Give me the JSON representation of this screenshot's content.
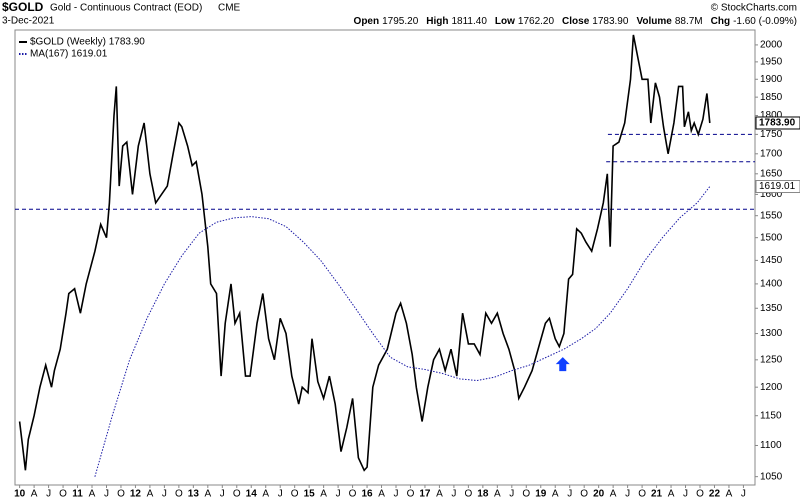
{
  "chart_data": {
    "type": "line",
    "symbol": "$GOLD",
    "name": "Gold - Continuous Contract (EOD)",
    "exchange": "CME",
    "date": "3-Dec-2021",
    "quote": [
      {
        "label": "Open",
        "value": "1795.20"
      },
      {
        "label": "High",
        "value": "1811.40"
      },
      {
        "label": "Low",
        "value": "1762.20"
      },
      {
        "label": "Close",
        "value": "1783.90"
      },
      {
        "label": "Volume",
        "value": "88.7M"
      },
      {
        "label": "Chg",
        "value": "-1.60 (-0.09%)"
      }
    ],
    "credit": "© StockCharts.com",
    "log_scale": true,
    "xlim": [
      2009.92,
      2022.7
    ],
    "ylim": [
      1037,
      2045
    ],
    "yticks": [
      1050,
      1100,
      1150,
      1200,
      1250,
      1300,
      1350,
      1400,
      1450,
      1500,
      1550,
      1600,
      1650,
      1700,
      1750,
      1800,
      1850,
      1900,
      1950,
      2000
    ],
    "xticks": [
      {
        "value": 2010,
        "label": "10"
      },
      {
        "value": 2010.25,
        "label": "A"
      },
      {
        "value": 2010.5,
        "label": "J"
      },
      {
        "value": 2010.75,
        "label": "O"
      },
      {
        "value": 2011,
        "label": "11"
      },
      {
        "value": 2011.25,
        "label": "A"
      },
      {
        "value": 2011.5,
        "label": "J"
      },
      {
        "value": 2011.75,
        "label": "O"
      },
      {
        "value": 2012,
        "label": "12"
      },
      {
        "value": 2012.25,
        "label": "A"
      },
      {
        "value": 2012.5,
        "label": "J"
      },
      {
        "value": 2012.75,
        "label": "O"
      },
      {
        "value": 2013,
        "label": "13"
      },
      {
        "value": 2013.25,
        "label": "A"
      },
      {
        "value": 2013.5,
        "label": "J"
      },
      {
        "value": 2013.75,
        "label": "O"
      },
      {
        "value": 2014,
        "label": "14"
      },
      {
        "value": 2014.25,
        "label": "A"
      },
      {
        "value": 2014.5,
        "label": "J"
      },
      {
        "value": 2014.75,
        "label": "O"
      },
      {
        "value": 2015,
        "label": "15"
      },
      {
        "value": 2015.25,
        "label": "A"
      },
      {
        "value": 2015.5,
        "label": "J"
      },
      {
        "value": 2015.75,
        "label": "O"
      },
      {
        "value": 2016,
        "label": "16"
      },
      {
        "value": 2016.25,
        "label": "A"
      },
      {
        "value": 2016.5,
        "label": "J"
      },
      {
        "value": 2016.75,
        "label": "O"
      },
      {
        "value": 2017,
        "label": "17"
      },
      {
        "value": 2017.25,
        "label": "A"
      },
      {
        "value": 2017.5,
        "label": "J"
      },
      {
        "value": 2017.75,
        "label": "O"
      },
      {
        "value": 2018,
        "label": "18"
      },
      {
        "value": 2018.25,
        "label": "A"
      },
      {
        "value": 2018.5,
        "label": "J"
      },
      {
        "value": 2018.75,
        "label": "O"
      },
      {
        "value": 2019,
        "label": "19"
      },
      {
        "value": 2019.25,
        "label": "A"
      },
      {
        "value": 2019.5,
        "label": "J"
      },
      {
        "value": 2019.75,
        "label": "O"
      },
      {
        "value": 2020,
        "label": "20"
      },
      {
        "value": 2020.25,
        "label": "A"
      },
      {
        "value": 2020.5,
        "label": "J"
      },
      {
        "value": 2020.75,
        "label": "O"
      },
      {
        "value": 2021,
        "label": "21"
      },
      {
        "value": 2021.25,
        "label": "A"
      },
      {
        "value": 2021.5,
        "label": "J"
      },
      {
        "value": 2021.75,
        "label": "O"
      },
      {
        "value": 2022,
        "label": "22"
      },
      {
        "value": 2022.25,
        "label": "A"
      },
      {
        "value": 2022.5,
        "label": "J"
      }
    ],
    "series": [
      {
        "name": "$GOLD (Weekly) 1783.90",
        "last_label": "1783.90",
        "color": "#000000",
        "style": "solid",
        "x": [
          2010.0,
          2010.05,
          2010.1,
          2010.15,
          2010.25,
          2010.35,
          2010.45,
          2010.55,
          2010.6,
          2010.7,
          2010.8,
          2010.85,
          2010.95,
          2011.05,
          2011.15,
          2011.3,
          2011.4,
          2011.5,
          2011.55,
          2011.63,
          2011.67,
          2011.72,
          2011.78,
          2011.85,
          2011.95,
          2012.05,
          2012.15,
          2012.25,
          2012.35,
          2012.45,
          2012.55,
          2012.65,
          2012.75,
          2012.8,
          2012.9,
          2012.98,
          2013.05,
          2013.15,
          2013.25,
          2013.3,
          2013.4,
          2013.48,
          2013.55,
          2013.65,
          2013.72,
          2013.8,
          2013.9,
          2013.98,
          2014.1,
          2014.2,
          2014.3,
          2014.4,
          2014.5,
          2014.6,
          2014.7,
          2014.82,
          2014.88,
          2014.98,
          2015.05,
          2015.15,
          2015.25,
          2015.35,
          2015.45,
          2015.55,
          2015.65,
          2015.75,
          2015.85,
          2015.95,
          2016.0,
          2016.1,
          2016.2,
          2016.35,
          2016.5,
          2016.58,
          2016.68,
          2016.78,
          2016.85,
          2016.95,
          2017.05,
          2017.15,
          2017.25,
          2017.35,
          2017.45,
          2017.55,
          2017.65,
          2017.75,
          2017.85,
          2017.95,
          2018.05,
          2018.15,
          2018.25,
          2018.35,
          2018.45,
          2018.55,
          2018.62,
          2018.72,
          2018.85,
          2018.98,
          2019.08,
          2019.15,
          2019.25,
          2019.32,
          2019.4,
          2019.48,
          2019.55,
          2019.62,
          2019.7,
          2019.78,
          2019.88,
          2019.98,
          2020.08,
          2020.15,
          2020.2,
          2020.25,
          2020.35,
          2020.45,
          2020.55,
          2020.6,
          2020.68,
          2020.75,
          2020.85,
          2020.9,
          2020.98,
          2021.05,
          2021.12,
          2021.2,
          2021.3,
          2021.38,
          2021.45,
          2021.48,
          2021.55,
          2021.6,
          2021.65,
          2021.72,
          2021.8,
          2021.87,
          2021.92
        ],
        "values": [
          1140,
          1100,
          1060,
          1110,
          1150,
          1200,
          1240,
          1200,
          1230,
          1270,
          1340,
          1380,
          1390,
          1340,
          1400,
          1470,
          1530,
          1500,
          1580,
          1800,
          1880,
          1620,
          1720,
          1730,
          1600,
          1720,
          1780,
          1650,
          1580,
          1600,
          1620,
          1700,
          1780,
          1770,
          1720,
          1670,
          1680,
          1600,
          1480,
          1400,
          1380,
          1220,
          1320,
          1400,
          1320,
          1340,
          1220,
          1220,
          1320,
          1380,
          1290,
          1250,
          1330,
          1300,
          1220,
          1170,
          1200,
          1190,
          1290,
          1210,
          1180,
          1220,
          1170,
          1090,
          1130,
          1180,
          1080,
          1060,
          1065,
          1200,
          1240,
          1270,
          1340,
          1360,
          1320,
          1260,
          1200,
          1140,
          1200,
          1250,
          1270,
          1230,
          1270,
          1220,
          1340,
          1280,
          1280,
          1260,
          1340,
          1320,
          1340,
          1300,
          1270,
          1230,
          1180,
          1200,
          1230,
          1280,
          1320,
          1330,
          1290,
          1275,
          1300,
          1410,
          1420,
          1520,
          1510,
          1490,
          1470,
          1520,
          1580,
          1650,
          1480,
          1720,
          1730,
          1780,
          1900,
          2030,
          1960,
          1900,
          1900,
          1780,
          1890,
          1850,
          1770,
          1700,
          1780,
          1880,
          1880,
          1770,
          1810,
          1760,
          1780,
          1750,
          1790,
          1860,
          1780
        ]
      },
      {
        "name": "MA(167) 1619.01",
        "last_label": "1619.01",
        "color": "#1a1aa6",
        "style": "dotted",
        "x": [
          2011.3,
          2011.6,
          2011.9,
          2012.2,
          2012.5,
          2012.8,
          2013.1,
          2013.4,
          2013.7,
          2014.0,
          2014.3,
          2014.6,
          2014.9,
          2015.2,
          2015.5,
          2015.8,
          2016.1,
          2016.4,
          2016.7,
          2017.0,
          2017.3,
          2017.6,
          2017.9,
          2018.2,
          2018.5,
          2018.8,
          2019.1,
          2019.4,
          2019.7,
          2019.95,
          2020.2,
          2020.5,
          2020.8,
          2021.1,
          2021.4,
          2021.7,
          2021.92
        ],
        "values": [
          1050,
          1150,
          1250,
          1330,
          1400,
          1460,
          1510,
          1535,
          1545,
          1548,
          1543,
          1525,
          1490,
          1450,
          1400,
          1350,
          1300,
          1255,
          1237,
          1232,
          1225,
          1215,
          1212,
          1218,
          1230,
          1240,
          1255,
          1270,
          1290,
          1310,
          1340,
          1390,
          1450,
          1500,
          1545,
          1580,
          1619
        ]
      }
    ],
    "hlines": [
      {
        "value": 1565,
        "color": "#00008b"
      },
      {
        "value": 1750,
        "x0": 2020.16,
        "color": "#00008b"
      },
      {
        "value": 1680,
        "x0": 2020.13,
        "color": "#00008b"
      }
    ],
    "arrows": [
      {
        "x": 2019.38,
        "y": 1255,
        "color": "#1040ff"
      }
    ]
  }
}
